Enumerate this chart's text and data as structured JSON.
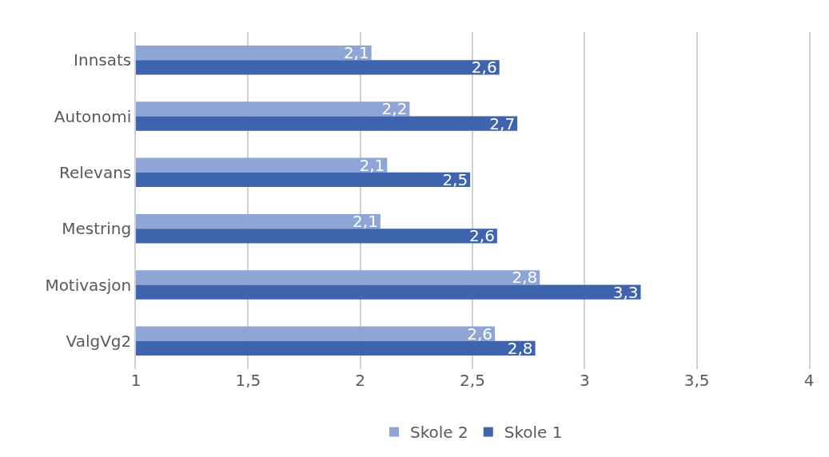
{
  "chart_data": {
    "type": "bar",
    "orientation": "horizontal",
    "categories": [
      "Innsats",
      "Autonomi",
      "Relevans",
      "Mestring",
      "Motivasjon",
      "ValgVg2"
    ],
    "series": [
      {
        "name": "Skole 2",
        "color": "#8fa5d6",
        "values": [
          2.05,
          2.22,
          2.12,
          2.09,
          2.8,
          2.6
        ],
        "value_labels": [
          "2,1",
          "2,2",
          "2,1",
          "2,1",
          "2,8",
          "2,6"
        ]
      },
      {
        "name": "Skole 1",
        "color": "#3d64ad",
        "values": [
          2.62,
          2.7,
          2.49,
          2.61,
          3.25,
          2.78
        ],
        "value_labels": [
          "2,6",
          "2,7",
          "2,5",
          "2,6",
          "3,3",
          "2,8"
        ]
      }
    ],
    "xlim": [
      1,
      4
    ],
    "xticks": [
      1,
      {
        "value": 1.5,
        "label": "1,5"
      },
      2,
      {
        "value": 2.5,
        "label": "2,5"
      },
      3,
      {
        "value": 3.5,
        "label": "3,5"
      },
      4
    ],
    "grid": "x",
    "legend": "bottom"
  }
}
